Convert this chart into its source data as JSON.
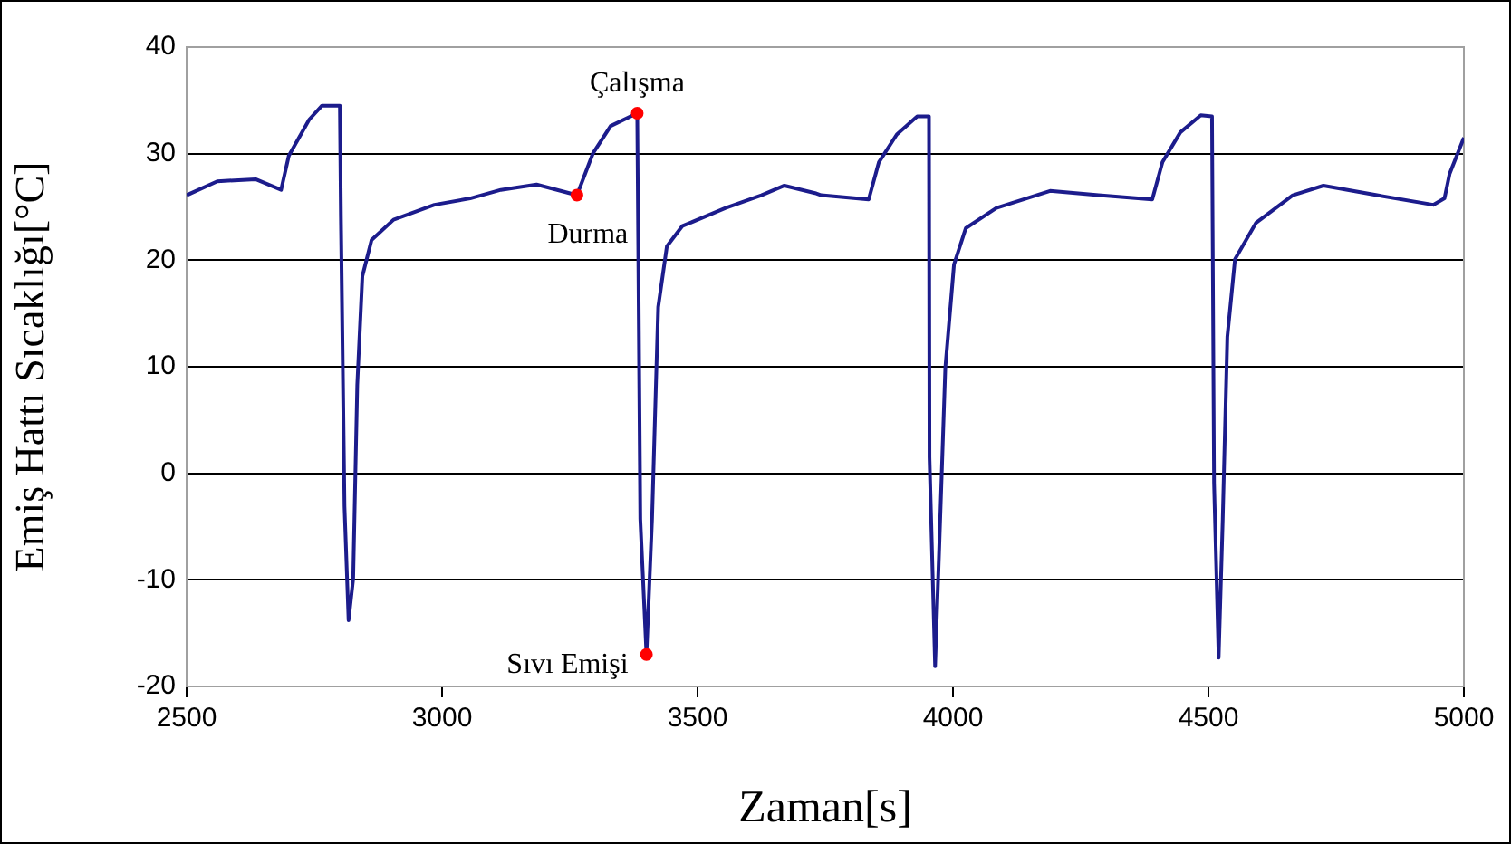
{
  "chart_data": {
    "type": "line",
    "xlabel": "Zaman[s]",
    "ylabel": "Emiş Hattı Sıcaklığı[°C]",
    "x": [
      2500,
      2560,
      2635,
      2685,
      2700,
      2740,
      2765,
      2800,
      2802,
      2809,
      2817,
      2826,
      2834,
      2844,
      2862,
      2905,
      2985,
      3055,
      3115,
      3185,
      3264,
      3295,
      3330,
      3382,
      3388,
      3400,
      3411,
      3423,
      3440,
      3470,
      3555,
      3625,
      3670,
      3730,
      3742,
      3835,
      3855,
      3890,
      3930,
      3953,
      3954,
      3965,
      3973,
      3985,
      4002,
      4025,
      4085,
      4190,
      4285,
      4390,
      4410,
      4445,
      4485,
      4507,
      4511,
      4520,
      4528,
      4537,
      4552,
      4593,
      4665,
      4725,
      4830,
      4940,
      4962,
      4972,
      5000
    ],
    "series": [
      {
        "color": "#1c1c8c",
        "values": [
          26.1,
          27.4,
          27.6,
          26.6,
          29.8,
          33.2,
          34.5,
          34.5,
          24.1,
          -3.1,
          -13.8,
          -9.9,
          8.3,
          18.5,
          21.9,
          23.8,
          25.2,
          25.8,
          26.6,
          27.1,
          26.1,
          30.0,
          32.6,
          33.8,
          -4.3,
          -17.0,
          -4.3,
          15.6,
          21.3,
          23.2,
          24.9,
          26.1,
          27.0,
          26.3,
          26.1,
          25.7,
          29.2,
          31.8,
          33.5,
          33.5,
          1.5,
          -18.1,
          -7.1,
          9.9,
          19.6,
          23.0,
          24.9,
          26.5,
          26.1,
          25.7,
          29.2,
          32.0,
          33.6,
          33.5,
          -0.9,
          -17.3,
          -4.3,
          12.8,
          20.1,
          23.5,
          26.1,
          27.0,
          26.1,
          25.2,
          25.8,
          28.1,
          31.5
        ]
      }
    ],
    "xlim": [
      2500,
      5000
    ],
    "xticks": [
      2500,
      3000,
      3500,
      4000,
      4500,
      5000
    ],
    "ylim": [
      -20,
      40
    ],
    "yticks": [
      -20,
      -10,
      0,
      10,
      20,
      30,
      40
    ],
    "grid": "y",
    "legend": false,
    "marker": "none",
    "line_style": "solid",
    "annotations": [
      {
        "text": "Durma",
        "x": 3264,
        "y": 26.1
      },
      {
        "text": "Çalışma",
        "x": 3382,
        "y": 33.8
      },
      {
        "text": "Sıvı Emişi",
        "x": 3400,
        "y": -17.0
      }
    ]
  }
}
